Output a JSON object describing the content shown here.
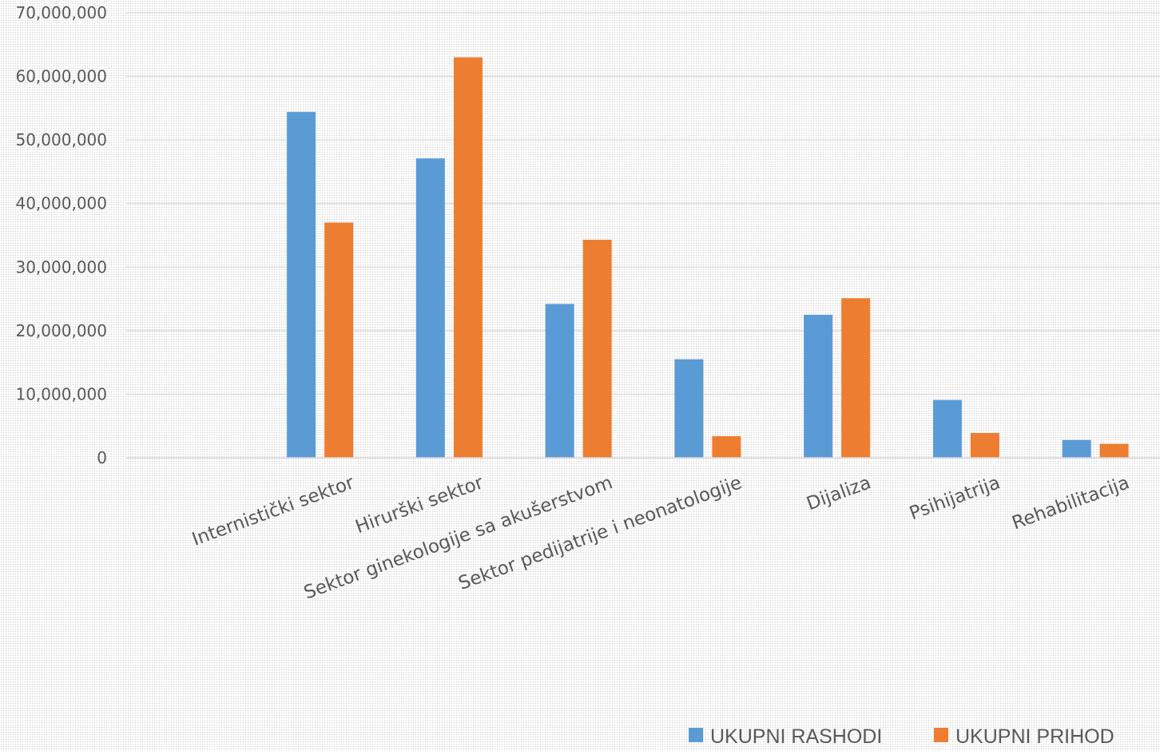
{
  "chart_data": {
    "type": "bar",
    "title": "",
    "xlabel": "",
    "ylabel": "",
    "categories": [
      "",
      "Internistički sektor",
      "Hirurški sektor",
      "Sektor ginekologije sa akušerstvom",
      "Sektor pedijatrije i neonatologije",
      "Dijaliza",
      "Psihijatrija",
      "Rehabilitacija"
    ],
    "series": [
      {
        "name": "UKUPNI RASHODI",
        "color": "#5b9bd5",
        "values": [
          0,
          54400000,
          47100000,
          24200000,
          15500000,
          22500000,
          9100000,
          2800000
        ]
      },
      {
        "name": "UKUPNI PRIHOD",
        "color": "#ed7d31",
        "values": [
          0,
          37000000,
          63000000,
          34300000,
          3400000,
          25100000,
          3900000,
          2200000
        ]
      }
    ],
    "ylim": [
      0,
      70000000
    ],
    "yticks": [
      0,
      10000000,
      20000000,
      30000000,
      40000000,
      50000000,
      60000000,
      70000000
    ],
    "ytick_labels": [
      "0",
      "10,000,000",
      "20,000,000",
      "30,000,000",
      "40,000,000",
      "50,000,000",
      "60,000,000",
      "70,000,000"
    ],
    "grid": true,
    "legend_position": "bottom-right"
  }
}
